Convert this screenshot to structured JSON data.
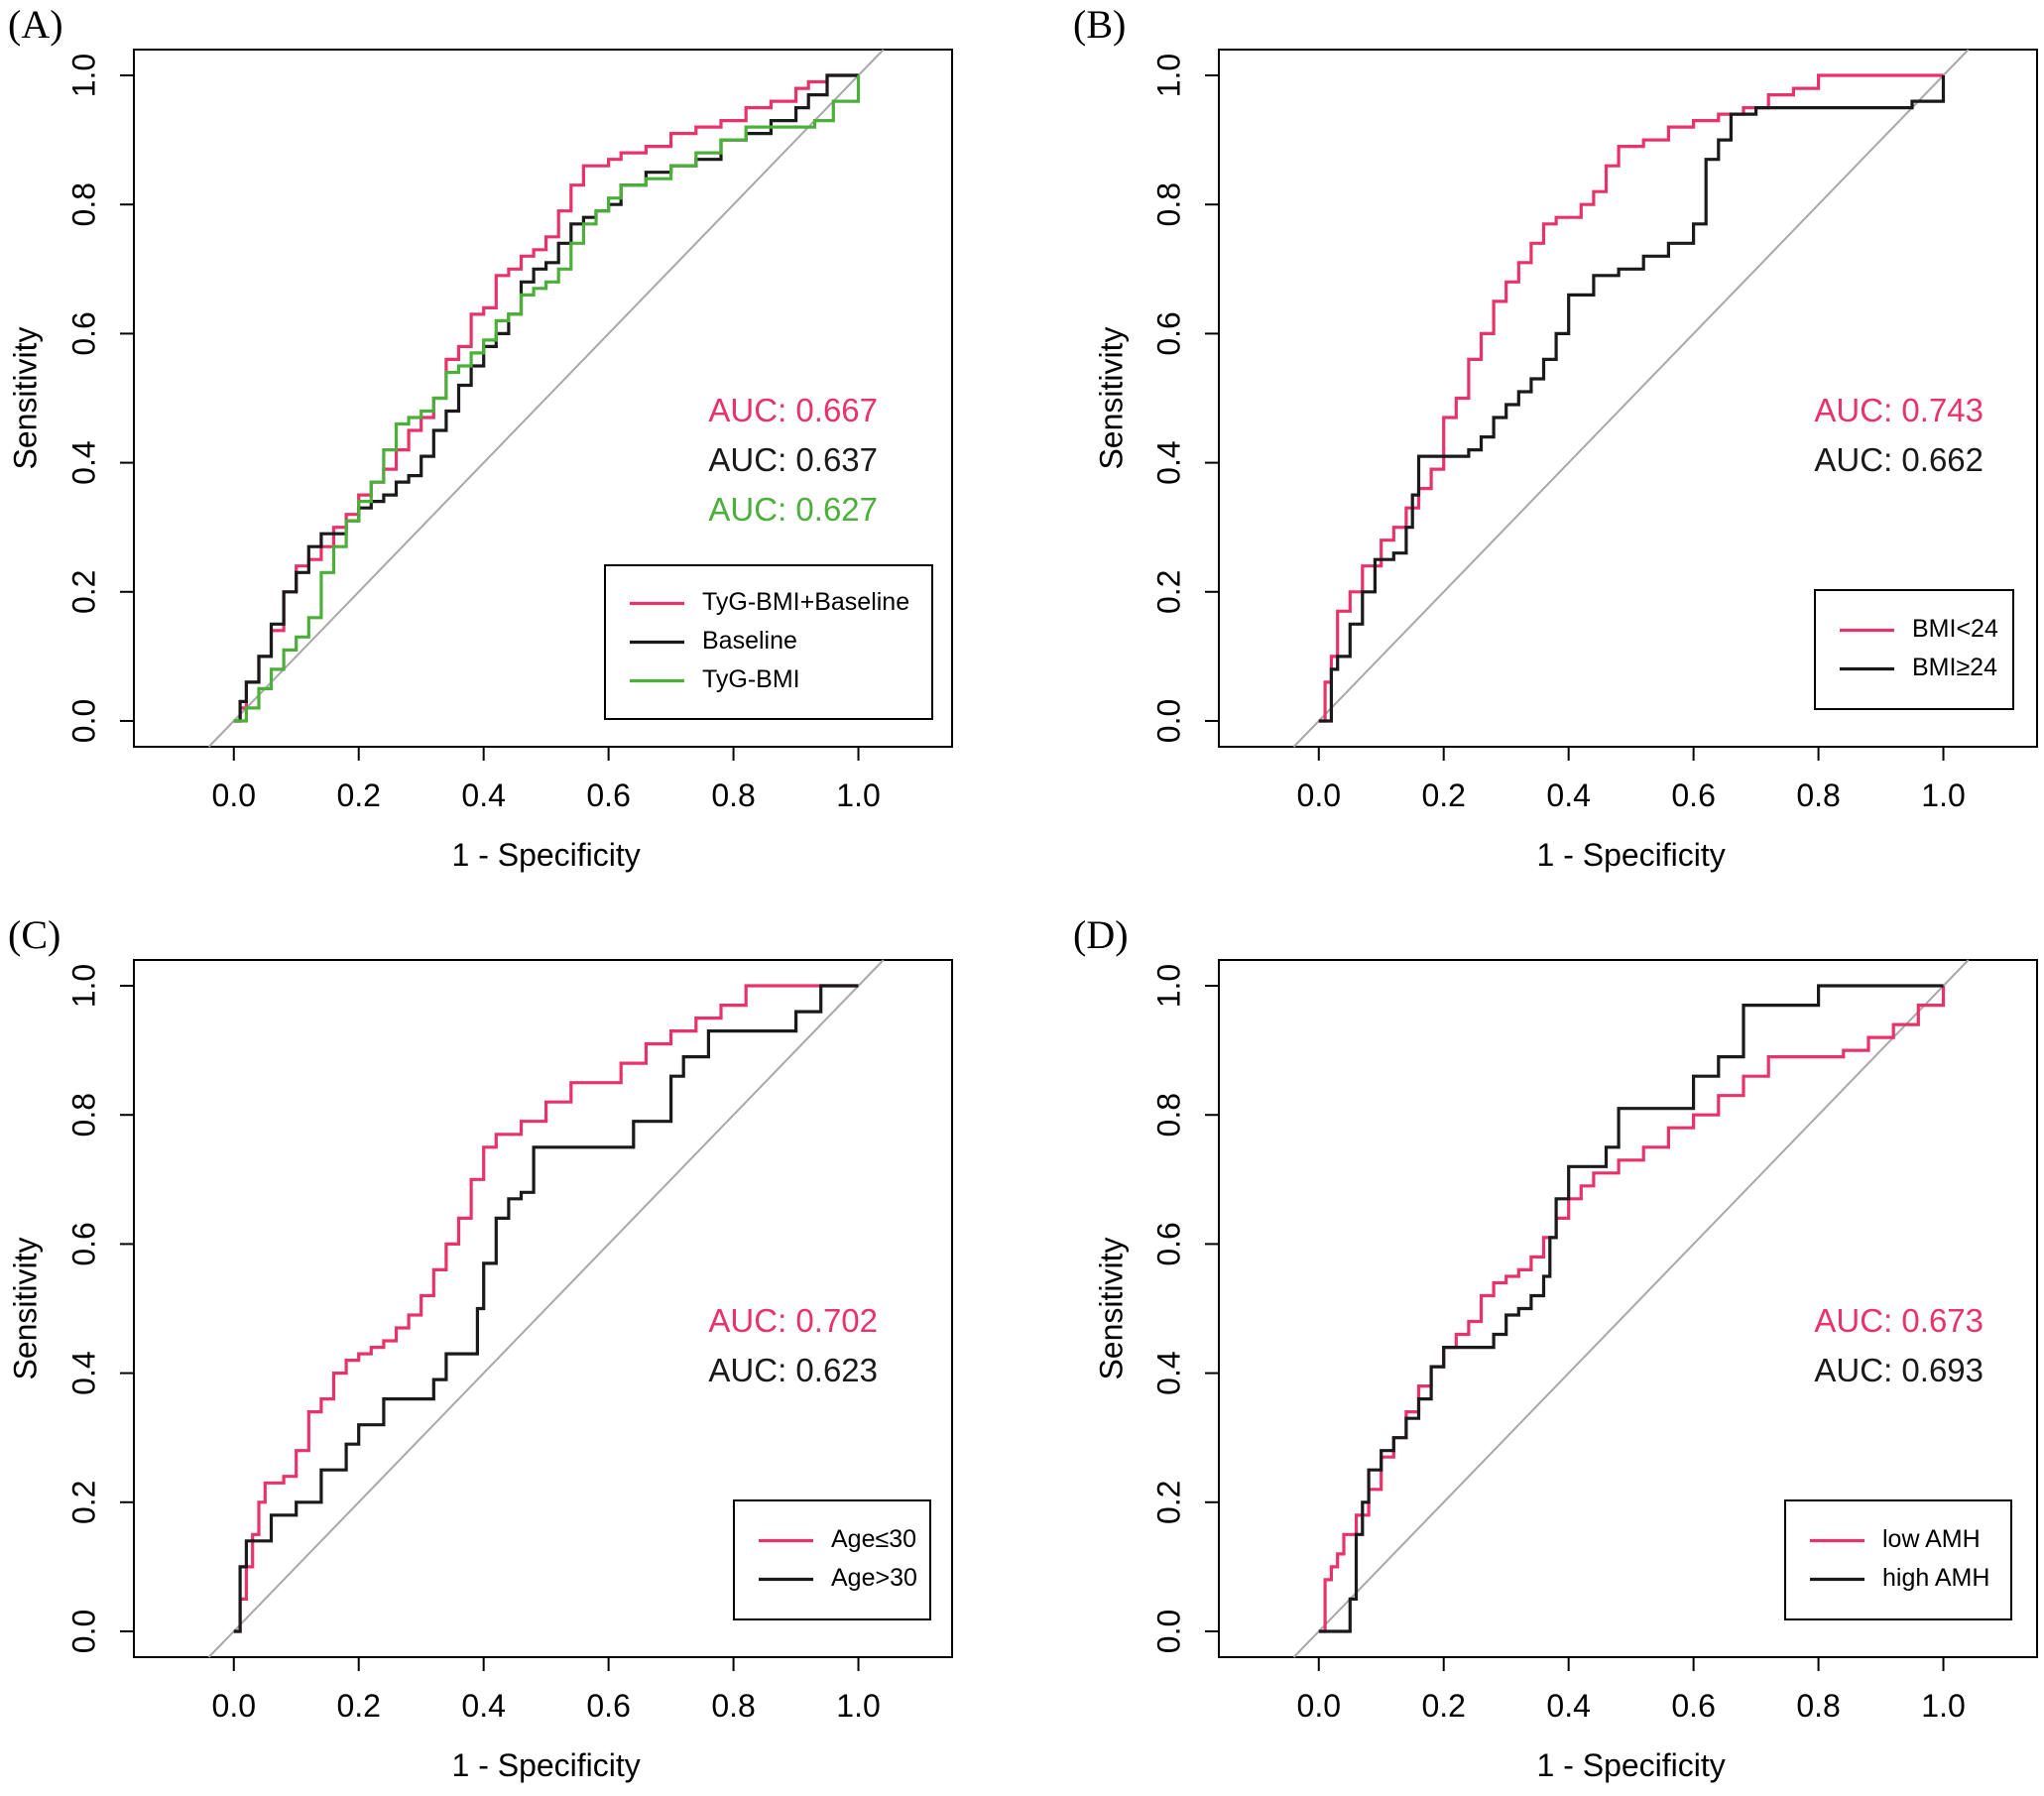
{
  "figure_panels": [
    "(A)",
    "(B)",
    "(C)",
    "(D)"
  ],
  "colors": {
    "red": "#e8336a",
    "black": "#1a1a1a",
    "green": "#4caf3a",
    "diagonal": "#a8a8a8"
  },
  "chart_data": [
    {
      "panel": "(A)",
      "type": "line",
      "xlabel": "1 - Specificity",
      "ylabel": "Sensitivity",
      "xlim": [
        -0.16,
        1.15
      ],
      "ylim": [
        -0.04,
        1.04
      ],
      "xticks": [
        "0.0",
        "0.2",
        "0.4",
        "0.6",
        "0.8",
        "1.0"
      ],
      "yticks": [
        "0.0",
        "0.2",
        "0.4",
        "0.6",
        "0.8",
        "1.0"
      ],
      "legend_position": "bottom-right",
      "series": [
        {
          "name": "TyG-BMI+Baseline",
          "color": "#e8336a",
          "auc": "AUC: 0.667",
          "x": [
            0,
            0.01,
            0.02,
            0.04,
            0.06,
            0.08,
            0.1,
            0.12,
            0.14,
            0.16,
            0.18,
            0.2,
            0.22,
            0.24,
            0.26,
            0.28,
            0.3,
            0.32,
            0.34,
            0.36,
            0.38,
            0.4,
            0.42,
            0.44,
            0.46,
            0.48,
            0.5,
            0.52,
            0.54,
            0.56,
            0.58,
            0.6,
            0.62,
            0.66,
            0.7,
            0.74,
            0.78,
            0.82,
            0.86,
            0.9,
            0.92,
            0.95,
            1.0
          ],
          "y": [
            0,
            0.02,
            0.06,
            0.1,
            0.14,
            0.2,
            0.24,
            0.25,
            0.27,
            0.3,
            0.32,
            0.35,
            0.37,
            0.39,
            0.42,
            0.45,
            0.47,
            0.5,
            0.56,
            0.58,
            0.63,
            0.64,
            0.69,
            0.7,
            0.72,
            0.73,
            0.75,
            0.79,
            0.83,
            0.86,
            0.86,
            0.87,
            0.88,
            0.89,
            0.91,
            0.92,
            0.93,
            0.95,
            0.96,
            0.98,
            0.99,
            1.0,
            1.0
          ]
        },
        {
          "name": "Baseline",
          "color": "#1a1a1a",
          "auc": "AUC: 0.637",
          "x": [
            0,
            0.01,
            0.02,
            0.04,
            0.06,
            0.08,
            0.1,
            0.12,
            0.14,
            0.16,
            0.18,
            0.2,
            0.22,
            0.24,
            0.26,
            0.28,
            0.3,
            0.32,
            0.34,
            0.36,
            0.38,
            0.4,
            0.42,
            0.44,
            0.46,
            0.48,
            0.5,
            0.52,
            0.54,
            0.56,
            0.58,
            0.6,
            0.62,
            0.66,
            0.7,
            0.74,
            0.78,
            0.82,
            0.86,
            0.9,
            0.92,
            0.95,
            1.0
          ],
          "y": [
            0,
            0.03,
            0.06,
            0.1,
            0.15,
            0.2,
            0.23,
            0.27,
            0.29,
            0.29,
            0.31,
            0.33,
            0.34,
            0.35,
            0.37,
            0.38,
            0.41,
            0.45,
            0.48,
            0.52,
            0.55,
            0.58,
            0.6,
            0.63,
            0.68,
            0.7,
            0.71,
            0.74,
            0.77,
            0.78,
            0.79,
            0.8,
            0.83,
            0.85,
            0.86,
            0.87,
            0.9,
            0.91,
            0.93,
            0.95,
            0.97,
            1.0,
            1.0
          ]
        },
        {
          "name": "TyG-BMI",
          "color": "#4caf3a",
          "auc": "AUC: 0.627",
          "x": [
            0,
            0.02,
            0.04,
            0.06,
            0.08,
            0.1,
            0.12,
            0.14,
            0.16,
            0.18,
            0.2,
            0.22,
            0.24,
            0.26,
            0.28,
            0.3,
            0.32,
            0.34,
            0.36,
            0.38,
            0.4,
            0.42,
            0.44,
            0.46,
            0.48,
            0.5,
            0.52,
            0.54,
            0.56,
            0.58,
            0.6,
            0.62,
            0.66,
            0.7,
            0.74,
            0.78,
            0.82,
            0.86,
            0.9,
            0.93,
            0.96,
            1.0
          ],
          "y": [
            0,
            0.02,
            0.05,
            0.08,
            0.11,
            0.13,
            0.16,
            0.23,
            0.27,
            0.31,
            0.34,
            0.37,
            0.42,
            0.46,
            0.47,
            0.48,
            0.5,
            0.54,
            0.55,
            0.57,
            0.59,
            0.62,
            0.63,
            0.66,
            0.67,
            0.68,
            0.7,
            0.74,
            0.77,
            0.79,
            0.81,
            0.83,
            0.84,
            0.86,
            0.88,
            0.9,
            0.92,
            0.92,
            0.92,
            0.93,
            0.96,
            1.0
          ]
        }
      ]
    },
    {
      "panel": "(B)",
      "type": "line",
      "xlabel": "1 - Specificity",
      "ylabel": "Sensitivity",
      "xlim": [
        -0.16,
        1.15
      ],
      "ylim": [
        -0.04,
        1.04
      ],
      "xticks": [
        "0.0",
        "0.2",
        "0.4",
        "0.6",
        "0.8",
        "1.0"
      ],
      "yticks": [
        "0.0",
        "0.2",
        "0.4",
        "0.6",
        "0.8",
        "1.0"
      ],
      "legend_position": "bottom-right",
      "series": [
        {
          "name": "BMI<24",
          "color": "#e8336a",
          "auc": "AUC: 0.743",
          "x": [
            0,
            0.01,
            0.02,
            0.03,
            0.05,
            0.07,
            0.1,
            0.12,
            0.14,
            0.16,
            0.18,
            0.2,
            0.22,
            0.24,
            0.26,
            0.28,
            0.3,
            0.32,
            0.34,
            0.36,
            0.38,
            0.4,
            0.42,
            0.44,
            0.46,
            0.48,
            0.52,
            0.56,
            0.6,
            0.64,
            0.68,
            0.72,
            0.76,
            0.8,
            0.9,
            1.0
          ],
          "y": [
            0,
            0.06,
            0.1,
            0.17,
            0.2,
            0.24,
            0.28,
            0.3,
            0.33,
            0.36,
            0.39,
            0.47,
            0.5,
            0.56,
            0.6,
            0.65,
            0.68,
            0.71,
            0.74,
            0.77,
            0.78,
            0.78,
            0.8,
            0.82,
            0.86,
            0.89,
            0.9,
            0.92,
            0.93,
            0.94,
            0.95,
            0.97,
            0.98,
            1.0,
            1.0,
            1.0
          ]
        },
        {
          "name": "BMI≥24",
          "color": "#1a1a1a",
          "auc": "AUC: 0.662",
          "x": [
            0,
            0.02,
            0.03,
            0.05,
            0.07,
            0.09,
            0.12,
            0.14,
            0.15,
            0.16,
            0.2,
            0.24,
            0.26,
            0.28,
            0.3,
            0.32,
            0.34,
            0.36,
            0.38,
            0.4,
            0.44,
            0.48,
            0.52,
            0.56,
            0.6,
            0.62,
            0.64,
            0.66,
            0.7,
            0.8,
            0.9,
            0.95,
            1.0
          ],
          "y": [
            0,
            0.08,
            0.1,
            0.15,
            0.2,
            0.25,
            0.26,
            0.3,
            0.35,
            0.41,
            0.41,
            0.42,
            0.44,
            0.47,
            0.49,
            0.51,
            0.53,
            0.56,
            0.6,
            0.66,
            0.69,
            0.7,
            0.72,
            0.74,
            0.77,
            0.87,
            0.9,
            0.94,
            0.95,
            0.95,
            0.95,
            0.96,
            1.0
          ]
        }
      ]
    },
    {
      "panel": "(C)",
      "type": "line",
      "xlabel": "1 - Specificity",
      "ylabel": "Sensitivity",
      "xlim": [
        -0.16,
        1.15
      ],
      "ylim": [
        -0.04,
        1.04
      ],
      "xticks": [
        "0.0",
        "0.2",
        "0.4",
        "0.6",
        "0.8",
        "1.0"
      ],
      "yticks": [
        "0.0",
        "0.2",
        "0.4",
        "0.6",
        "0.8",
        "1.0"
      ],
      "legend_position": "bottom-right",
      "series": [
        {
          "name": "Age≤30",
          "color": "#e8336a",
          "auc": "AUC: 0.702",
          "x": [
            0,
            0.01,
            0.02,
            0.03,
            0.04,
            0.05,
            0.06,
            0.08,
            0.1,
            0.12,
            0.14,
            0.16,
            0.18,
            0.2,
            0.22,
            0.24,
            0.26,
            0.28,
            0.3,
            0.32,
            0.34,
            0.36,
            0.38,
            0.4,
            0.42,
            0.46,
            0.5,
            0.54,
            0.58,
            0.62,
            0.66,
            0.7,
            0.74,
            0.78,
            0.82,
            0.9,
            1.0
          ],
          "y": [
            0,
            0.05,
            0.1,
            0.15,
            0.2,
            0.23,
            0.23,
            0.24,
            0.28,
            0.34,
            0.36,
            0.4,
            0.42,
            0.43,
            0.44,
            0.45,
            0.47,
            0.49,
            0.52,
            0.56,
            0.6,
            0.64,
            0.7,
            0.75,
            0.77,
            0.79,
            0.82,
            0.85,
            0.85,
            0.88,
            0.91,
            0.93,
            0.95,
            0.97,
            1.0,
            1.0,
            1.0
          ]
        },
        {
          "name": "Age>30",
          "color": "#1a1a1a",
          "auc": "AUC: 0.623",
          "x": [
            0,
            0.01,
            0.02,
            0.06,
            0.1,
            0.14,
            0.18,
            0.2,
            0.24,
            0.32,
            0.34,
            0.36,
            0.39,
            0.4,
            0.42,
            0.44,
            0.46,
            0.48,
            0.52,
            0.6,
            0.64,
            0.7,
            0.72,
            0.76,
            0.8,
            0.86,
            0.9,
            0.94,
            1.0
          ],
          "y": [
            0,
            0.1,
            0.14,
            0.18,
            0.2,
            0.25,
            0.29,
            0.32,
            0.36,
            0.39,
            0.43,
            0.43,
            0.5,
            0.57,
            0.64,
            0.67,
            0.68,
            0.75,
            0.75,
            0.75,
            0.79,
            0.86,
            0.89,
            0.93,
            0.93,
            0.93,
            0.96,
            1.0,
            1.0
          ]
        }
      ]
    },
    {
      "panel": "(D)",
      "type": "line",
      "xlabel": "1 - Specificity",
      "ylabel": "Sensitivity",
      "xlim": [
        -0.16,
        1.15
      ],
      "ylim": [
        -0.04,
        1.04
      ],
      "xticks": [
        "0.0",
        "0.2",
        "0.4",
        "0.6",
        "0.8",
        "1.0"
      ],
      "yticks": [
        "0.0",
        "0.2",
        "0.4",
        "0.6",
        "0.8",
        "1.0"
      ],
      "legend_position": "bottom-right",
      "series": [
        {
          "name": "low AMH",
          "color": "#e8336a",
          "auc": "AUC: 0.673",
          "x": [
            0,
            0.01,
            0.02,
            0.03,
            0.04,
            0.06,
            0.08,
            0.1,
            0.12,
            0.14,
            0.16,
            0.18,
            0.2,
            0.22,
            0.24,
            0.26,
            0.28,
            0.3,
            0.32,
            0.34,
            0.36,
            0.38,
            0.4,
            0.42,
            0.44,
            0.48,
            0.52,
            0.56,
            0.6,
            0.64,
            0.68,
            0.72,
            0.76,
            0.8,
            0.84,
            0.88,
            0.92,
            0.96,
            1.0
          ],
          "y": [
            0,
            0.08,
            0.1,
            0.12,
            0.15,
            0.18,
            0.22,
            0.27,
            0.3,
            0.34,
            0.38,
            0.41,
            0.44,
            0.46,
            0.48,
            0.52,
            0.54,
            0.55,
            0.56,
            0.58,
            0.61,
            0.64,
            0.67,
            0.69,
            0.71,
            0.73,
            0.75,
            0.78,
            0.8,
            0.83,
            0.86,
            0.89,
            0.89,
            0.89,
            0.9,
            0.92,
            0.94,
            0.97,
            1.0
          ]
        },
        {
          "name": "high AMH",
          "color": "#1a1a1a",
          "auc": "AUC: 0.693",
          "x": [
            0,
            0.04,
            0.05,
            0.06,
            0.07,
            0.08,
            0.1,
            0.12,
            0.14,
            0.16,
            0.18,
            0.2,
            0.24,
            0.28,
            0.3,
            0.32,
            0.34,
            0.36,
            0.37,
            0.38,
            0.4,
            0.44,
            0.46,
            0.48,
            0.52,
            0.56,
            0.6,
            0.64,
            0.66,
            0.68,
            0.72,
            0.76,
            0.8,
            0.9,
            1.0
          ],
          "y": [
            0,
            0,
            0.05,
            0.15,
            0.2,
            0.25,
            0.28,
            0.3,
            0.33,
            0.36,
            0.41,
            0.44,
            0.44,
            0.46,
            0.49,
            0.5,
            0.52,
            0.55,
            0.61,
            0.67,
            0.72,
            0.72,
            0.75,
            0.81,
            0.81,
            0.81,
            0.86,
            0.89,
            0.89,
            0.97,
            0.97,
            0.97,
            1.0,
            1.0,
            1.0
          ]
        }
      ]
    }
  ]
}
